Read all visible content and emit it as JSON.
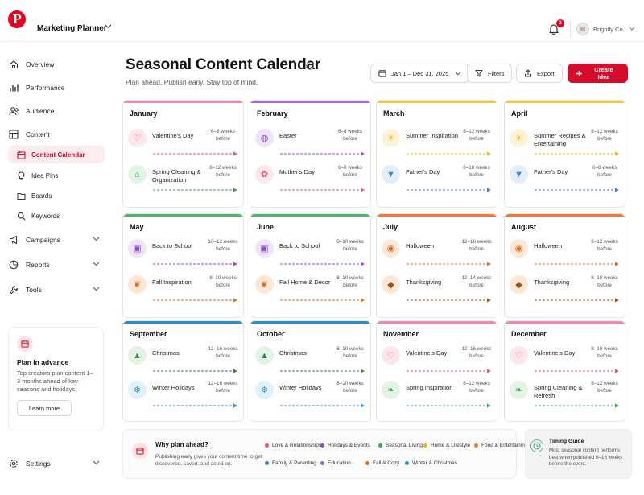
{
  "topbar": {
    "logo_letter": "P",
    "app_title": "Marketing Planner",
    "notification_count": "3",
    "account_name": "Brightly Co."
  },
  "sidebar": {
    "items": [
      {
        "label": "Overview",
        "icon": "home-icon"
      },
      {
        "label": "Performance",
        "icon": "bar-chart-icon"
      },
      {
        "label": "Audience",
        "icon": "users-icon"
      },
      {
        "label": "Content",
        "icon": "grid-icon"
      }
    ],
    "sub_items": [
      {
        "label": "Content Calendar",
        "icon": "calendar-icon",
        "active": true
      },
      {
        "label": "Idea Pins",
        "icon": "lightbulb-icon"
      },
      {
        "label": "Boards",
        "icon": "folder-icon"
      },
      {
        "label": "Keywords",
        "icon": "search-icon"
      }
    ],
    "expandable": [
      {
        "label": "Campaigns",
        "icon": "megaphone-icon"
      },
      {
        "label": "Reports",
        "icon": "pie-chart-icon"
      },
      {
        "label": "Tools",
        "icon": "wrench-icon"
      }
    ],
    "plan_card": {
      "title": "Plan in advance",
      "text": "Top creators plan content 1–3 months ahead of key seasons and holidays.",
      "button": "Learn more"
    },
    "settings_label": "Settings"
  },
  "header": {
    "title": "Seasonal Content Calendar",
    "subtitle": "Plan ahead. Publish early. Stay top of mind.",
    "date_range": "Jan 1 – Dec 31, 2025",
    "filters_label": "Filters",
    "export_label": "Export",
    "create_label": "Create Idea"
  },
  "colors": {
    "love": "#e8557a",
    "holidays": "#8e4fc9",
    "seasonal": "#3aa657",
    "home": "#f2b416",
    "food": "#f07a2e",
    "family": "#3f7fd0",
    "education": "#9b64d3",
    "fall": "#e06c1f",
    "winter": "#2a8fcf",
    "brand": "#d50c2b"
  },
  "months": [
    {
      "name": "January",
      "stripe": "#f08aa8",
      "events": [
        {
          "name": "Valentine's Day",
          "timing": "6–8 weeks before",
          "icon": "heart-icon",
          "glyph": "♡",
          "bg": "#fde6ec",
          "fg": "#e8557a"
        },
        {
          "name": "Spring Cleaning & Organization",
          "timing": "8–12 weeks before",
          "icon": "house-icon",
          "glyph": "⌂",
          "bg": "#e3f4e6",
          "fg": "#3aa657"
        }
      ]
    },
    {
      "name": "February",
      "stripe": "#a86ad6",
      "events": [
        {
          "name": "Easter",
          "timing": "6–8 weeks before",
          "icon": "egg-icon",
          "glyph": "◍",
          "bg": "#efe4fa",
          "fg": "#8e4fc9"
        },
        {
          "name": "Mother's Day",
          "timing": "6–8 weeks before",
          "icon": "flower-icon",
          "glyph": "✿",
          "bg": "#fde6ec",
          "fg": "#e8557a"
        }
      ]
    },
    {
      "name": "March",
      "stripe": "#f4c542",
      "events": [
        {
          "name": "Summer Inspiration",
          "timing": "8–12 weeks before",
          "icon": "sun-icon",
          "glyph": "☀",
          "bg": "#fdf3d6",
          "fg": "#f2b416"
        },
        {
          "name": "Father's Day",
          "timing": "8–10 weeks before",
          "icon": "tie-icon",
          "glyph": "▼",
          "bg": "#e3eefb",
          "fg": "#3f7fd0"
        }
      ]
    },
    {
      "name": "April",
      "stripe": "#f4c542",
      "events": [
        {
          "name": "Summer Recipes & Entertaining",
          "timing": "8–12 weeks before",
          "icon": "sun-icon",
          "glyph": "☀",
          "bg": "#fdf3d6",
          "fg": "#f2b416"
        },
        {
          "name": "Father's Day",
          "timing": "6–8 weeks before",
          "icon": "tie-icon",
          "glyph": "▼",
          "bg": "#e3eefb",
          "fg": "#3f7fd0"
        }
      ]
    },
    {
      "name": "May",
      "stripe": "#4cb868",
      "events": [
        {
          "name": "Back to School",
          "timing": "10–12 weeks before",
          "icon": "backpack-icon",
          "glyph": "▣",
          "bg": "#efe4fa",
          "fg": "#8e4fc9"
        },
        {
          "name": "Fall Inspiration",
          "timing": "8–10 weeks before",
          "icon": "leaf-icon",
          "glyph": "❦",
          "bg": "#fde8d8",
          "fg": "#e06c1f"
        }
      ]
    },
    {
      "name": "June",
      "stripe": "#4cb868",
      "events": [
        {
          "name": "Back to School",
          "timing": "8–10 weeks before",
          "icon": "backpack-icon",
          "glyph": "▣",
          "bg": "#efe4fa",
          "fg": "#8e4fc9"
        },
        {
          "name": "Fall Home & Decor",
          "timing": "8–10 weeks before",
          "icon": "leaf-icon",
          "glyph": "❦",
          "bg": "#fde8d8",
          "fg": "#e06c1f"
        }
      ]
    },
    {
      "name": "July",
      "stripe": "#f07a2e",
      "events": [
        {
          "name": "Halloween",
          "timing": "12–16 weeks before",
          "icon": "pumpkin-icon",
          "glyph": "◉",
          "bg": "#fde8d8",
          "fg": "#e06c1f"
        },
        {
          "name": "Thanksgiving",
          "timing": "12–14 weeks before",
          "icon": "turkey-icon",
          "glyph": "◆",
          "bg": "#fde8d8",
          "fg": "#a0521c"
        }
      ]
    },
    {
      "name": "August",
      "stripe": "#f07a2e",
      "events": [
        {
          "name": "Halloween",
          "timing": "8–12 weeks before",
          "icon": "pumpkin-icon",
          "glyph": "◉",
          "bg": "#fde8d8",
          "fg": "#e06c1f"
        },
        {
          "name": "Thanksgiving",
          "timing": "8–10 weeks before",
          "icon": "turkey-icon",
          "glyph": "◆",
          "bg": "#fde8d8",
          "fg": "#a0521c"
        }
      ]
    },
    {
      "name": "September",
      "stripe": "#2a8fcf",
      "events": [
        {
          "name": "Christmas",
          "timing": "12–16 weeks before",
          "icon": "tree-icon",
          "glyph": "▲",
          "bg": "#e3f4e6",
          "fg": "#2e8b45"
        },
        {
          "name": "Winter Holidays",
          "timing": "12–16 weeks before",
          "icon": "snowflake-icon",
          "glyph": "❄",
          "bg": "#e1f0fa",
          "fg": "#2a8fcf"
        }
      ]
    },
    {
      "name": "October",
      "stripe": "#2a8fcf",
      "events": [
        {
          "name": "Christmas",
          "timing": "8–10 weeks before",
          "icon": "tree-icon",
          "glyph": "▲",
          "bg": "#e3f4e6",
          "fg": "#2e8b45"
        },
        {
          "name": "Winter Holidays",
          "timing": "8–10 weeks before",
          "icon": "snowflake-icon",
          "glyph": "❄",
          "bg": "#e1f0fa",
          "fg": "#2a8fcf"
        }
      ]
    },
    {
      "name": "November",
      "stripe": "#f08aa8",
      "events": [
        {
          "name": "Valentine's Day",
          "timing": "12–16 weeks before",
          "icon": "heart-icon",
          "glyph": "♡",
          "bg": "#fde6ec",
          "fg": "#e8557a"
        },
        {
          "name": "Spring Inspiration",
          "timing": "8–12 weeks before",
          "icon": "leaf-icon",
          "glyph": "❧",
          "bg": "#e3f4e6",
          "fg": "#3aa657"
        }
      ]
    },
    {
      "name": "December",
      "stripe": "#f08aa8",
      "events": [
        {
          "name": "Valentine's Day",
          "timing": "8–10 weeks before",
          "icon": "heart-icon",
          "glyph": "♡",
          "bg": "#fde6ec",
          "fg": "#e8557a"
        },
        {
          "name": "Spring Cleaning & Refresh",
          "timing": "8–12 weeks before",
          "icon": "leaf-icon",
          "glyph": "❧",
          "bg": "#e3f4e6",
          "fg": "#3aa657"
        }
      ]
    }
  ],
  "footer": {
    "why_title": "Why plan ahead?",
    "why_text": "Publishing early gives your content time to get discovered, saved, and acted on.",
    "legend": [
      {
        "label": "Love & Relationships",
        "color": "#e8557a"
      },
      {
        "label": "Holidays & Events",
        "color": "#8e4fc9"
      },
      {
        "label": "Seasonal Living",
        "color": "#3aa657"
      },
      {
        "label": "Home & Lifestyle",
        "color": "#f2b416"
      },
      {
        "label": "Food & Entertaining",
        "color": "#f07a2e"
      },
      {
        "label": "Family & Parenting",
        "color": "#3f7fd0"
      },
      {
        "label": "Education",
        "color": "#9b64d3"
      },
      {
        "label": "Fall & Cozy",
        "color": "#e06c1f"
      },
      {
        "label": "Winter & Christmas",
        "color": "#2a8fcf"
      }
    ],
    "timing_title": "Timing Guide",
    "timing_text": "Most seasonal content performs best when published 6–16 weeks before the event."
  }
}
